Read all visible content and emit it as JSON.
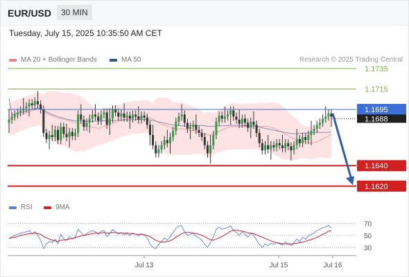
{
  "header": {
    "symbol": "EUR/USD",
    "timeframe": "30 MIN"
  },
  "timestamp": "Tuesday, July 15, 2025 10:35:50 AM CET",
  "legend_main": [
    {
      "label": "MA 20 + Bollinger Bands",
      "color": "#f08080"
    },
    {
      "label": "MA 50",
      "color": "#2c5a8c"
    }
  ],
  "credit": "Research © 2025 Trading Central",
  "legend_rsi": [
    {
      "label": "RSI",
      "color": "#5b7fd0"
    },
    {
      "label": "9MA",
      "color": "#d0202b"
    }
  ],
  "chart_data": {
    "type": "candlestick",
    "instrument": "EUR/USD",
    "interval": "30 MIN",
    "ylim": [
      1.1609,
      1.1737
    ],
    "x_ticks": [
      "Jul 13",
      "Jul 15",
      "Jul 16"
    ],
    "current_price": "1.1688",
    "levels": [
      {
        "value": 1.1735,
        "label": "1.1735",
        "color": "#7cb342",
        "style": "resistance",
        "badge": false
      },
      {
        "value": 1.1715,
        "label": "1.1715",
        "color": "#7cb342",
        "style": "resistance",
        "badge": false
      },
      {
        "value": 1.1695,
        "label": "1.1695",
        "color": "#3d6fd8",
        "style": "pivot",
        "badge": true
      },
      {
        "value": 1.164,
        "label": "1.1640",
        "color": "#d21f1f",
        "style": "support",
        "badge": true
      },
      {
        "value": 1.162,
        "label": "1.1620",
        "color": "#d21f1f",
        "style": "support",
        "badge": true
      }
    ],
    "forecast_arrow": {
      "from": 1.1691,
      "to": 1.1621,
      "direction": "down"
    },
    "closes": [
      1.1685,
      1.1688,
      1.169,
      1.1692,
      1.1694,
      1.1696,
      1.1698,
      1.1701,
      1.1699,
      1.1703,
      1.17,
      1.1695,
      1.1672,
      1.1666,
      1.167,
      1.1668,
      1.1675,
      1.1665,
      1.1678,
      1.1671,
      1.1668,
      1.1673,
      1.1669,
      1.1672,
      1.169,
      1.1685,
      1.1678,
      1.1682,
      1.1686,
      1.169,
      1.1688,
      1.1684,
      1.169,
      1.1692,
      1.168,
      1.1686,
      1.1695,
      1.1692,
      1.1688,
      1.1691,
      1.1687,
      1.1689,
      1.1686,
      1.169,
      1.1688,
      1.1685,
      1.1689,
      1.1687,
      1.168,
      1.167,
      1.166,
      1.1652,
      1.1656,
      1.166,
      1.1665,
      1.1662,
      1.1668,
      1.1674,
      1.1683,
      1.1688,
      1.169,
      1.1682,
      1.1676,
      1.1678,
      1.168,
      1.1675,
      1.1672,
      1.1668,
      1.166,
      1.1652,
      1.166,
      1.167,
      1.1683,
      1.1689,
      1.1686,
      1.1688,
      1.169,
      1.1694,
      1.1688,
      1.1685,
      1.1681,
      1.1686,
      1.1682,
      1.1677,
      1.1683,
      1.168,
      1.1672,
      1.1662,
      1.1655,
      1.166,
      1.1656,
      1.166,
      1.1658,
      1.1662,
      1.166,
      1.1657,
      1.1662,
      1.1659,
      1.1655,
      1.166,
      1.1666,
      1.1662,
      1.1668,
      1.1665,
      1.167,
      1.1674,
      1.1676,
      1.168,
      1.1682,
      1.1686,
      1.1688,
      1.1691,
      1.1688
    ],
    "rsi_ticks": [
      30,
      50,
      70
    ],
    "rsi": [
      45,
      48,
      50,
      52,
      54,
      55,
      56,
      58,
      53,
      56,
      50,
      42,
      28,
      36,
      40,
      38,
      44,
      36,
      52,
      44,
      42,
      48,
      44,
      47,
      60,
      55,
      50,
      53,
      56,
      58,
      56,
      52,
      57,
      58,
      48,
      53,
      60,
      56,
      52,
      55,
      51,
      53,
      50,
      54,
      52,
      49,
      53,
      51,
      46,
      36,
      30,
      28,
      35,
      40,
      46,
      42,
      48,
      55,
      62,
      66,
      66,
      56,
      50,
      52,
      54,
      48,
      46,
      42,
      35,
      30,
      38,
      48,
      60,
      64,
      60,
      62,
      63,
      66,
      58,
      55,
      50,
      56,
      52,
      47,
      54,
      50,
      42,
      35,
      30,
      36,
      33,
      37,
      35,
      38,
      36,
      34,
      39,
      36,
      33,
      38,
      44,
      40,
      47,
      44,
      49,
      52,
      54,
      58,
      60,
      63,
      64,
      67,
      62
    ],
    "rsi_ma": [
      45,
      46,
      47,
      48,
      50,
      51,
      52,
      53,
      53,
      54,
      53,
      52,
      48,
      46,
      44,
      42,
      41,
      40,
      42,
      42,
      43,
      44,
      45,
      46,
      48,
      49,
      50,
      51,
      52,
      53,
      54,
      54,
      54,
      55,
      54,
      54,
      55,
      55,
      54,
      54,
      54,
      54,
      53,
      53,
      52,
      52,
      52,
      51,
      50,
      48,
      45,
      42,
      40,
      39,
      39,
      40,
      41,
      44,
      47,
      50,
      53,
      55,
      55,
      55,
      54,
      53,
      52,
      50,
      48,
      45,
      43,
      42,
      44,
      46,
      48,
      51,
      54,
      57,
      59,
      59,
      58,
      57,
      56,
      54,
      54,
      53,
      51,
      49,
      47,
      45,
      43,
      41,
      39,
      38,
      37,
      36,
      36,
      36,
      36,
      36,
      37,
      38,
      39,
      40,
      42,
      43,
      45,
      47,
      49,
      52,
      54,
      57,
      58
    ]
  }
}
